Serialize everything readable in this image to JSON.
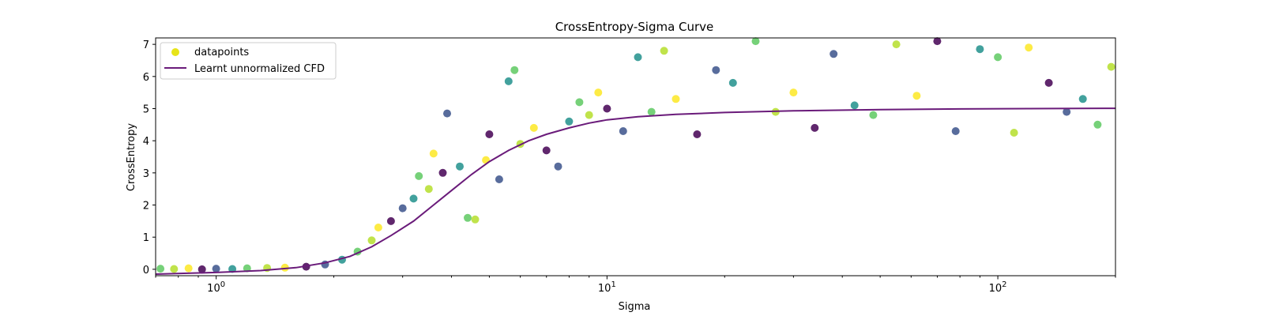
{
  "chart_data": {
    "type": "scatter",
    "title": "CrossEntropy-Sigma Curve",
    "xlabel": "Sigma",
    "ylabel": "CrossEntropy",
    "xscale": "log",
    "xlim": [
      0.7,
      200
    ],
    "ylim": [
      -0.2,
      7.2
    ],
    "xticks": [
      {
        "value": 1,
        "base": "10",
        "exp": "0"
      },
      {
        "value": 10,
        "base": "10",
        "exp": "1"
      },
      {
        "value": 100,
        "base": "10",
        "exp": "2"
      }
    ],
    "yticks": [
      0,
      1,
      2,
      3,
      4,
      5,
      6,
      7
    ],
    "grid": false,
    "legend": {
      "placement": "top-left",
      "entries": [
        {
          "label": "datapoints",
          "kind": "marker",
          "color": "#e7e419"
        },
        {
          "label": "Learnt unnormalized CFD",
          "kind": "line",
          "color": "#6a1b7a"
        }
      ]
    },
    "series": [
      {
        "name": "datapoints",
        "kind": "scatter",
        "colormap": "viridis",
        "points": [
          [
            0.72,
            0.02
          ],
          [
            0.78,
            0.01
          ],
          [
            0.85,
            0.03
          ],
          [
            0.92,
            0.0
          ],
          [
            1.0,
            0.02
          ],
          [
            1.1,
            0.01
          ],
          [
            1.2,
            0.03
          ],
          [
            1.35,
            0.04
          ],
          [
            1.5,
            0.05
          ],
          [
            1.7,
            0.08
          ],
          [
            1.9,
            0.15
          ],
          [
            2.1,
            0.3
          ],
          [
            2.3,
            0.55
          ],
          [
            2.5,
            0.9
          ],
          [
            2.6,
            1.3
          ],
          [
            2.8,
            1.5
          ],
          [
            3.0,
            1.9
          ],
          [
            3.2,
            2.2
          ],
          [
            3.3,
            2.9
          ],
          [
            3.5,
            2.5
          ],
          [
            3.6,
            3.6
          ],
          [
            3.8,
            3.0
          ],
          [
            3.9,
            4.85
          ],
          [
            4.2,
            3.2
          ],
          [
            4.4,
            1.6
          ],
          [
            4.6,
            1.55
          ],
          [
            4.9,
            3.4
          ],
          [
            5.0,
            4.2
          ],
          [
            5.3,
            2.8
          ],
          [
            5.6,
            5.85
          ],
          [
            5.8,
            6.2
          ],
          [
            6.0,
            3.9
          ],
          [
            6.5,
            4.4
          ],
          [
            7.0,
            3.7
          ],
          [
            7.5,
            3.2
          ],
          [
            8.0,
            4.6
          ],
          [
            8.5,
            5.2
          ],
          [
            9.0,
            4.8
          ],
          [
            9.5,
            5.5
          ],
          [
            10.0,
            5.0
          ],
          [
            11.0,
            4.3
          ],
          [
            12.0,
            6.6
          ],
          [
            13.0,
            4.9
          ],
          [
            14.0,
            6.8
          ],
          [
            15.0,
            5.3
          ],
          [
            17.0,
            4.2
          ],
          [
            19.0,
            6.2
          ],
          [
            21.0,
            5.8
          ],
          [
            24.0,
            7.1
          ],
          [
            27.0,
            4.9
          ],
          [
            30.0,
            5.5
          ],
          [
            34.0,
            4.4
          ],
          [
            38.0,
            6.7
          ],
          [
            43.0,
            5.1
          ],
          [
            48.0,
            4.8
          ],
          [
            55.0,
            7.0
          ],
          [
            62.0,
            5.4
          ],
          [
            70.0,
            7.1
          ],
          [
            78.0,
            4.3
          ],
          [
            90.0,
            6.85
          ],
          [
            100.0,
            6.6
          ],
          [
            110.0,
            4.25
          ],
          [
            120.0,
            6.9
          ],
          [
            135.0,
            5.8
          ],
          [
            150.0,
            4.9
          ],
          [
            165.0,
            5.3
          ],
          [
            180.0,
            4.5
          ],
          [
            195.0,
            6.3
          ]
        ]
      },
      {
        "name": "Learnt unnormalized CFD",
        "kind": "line",
        "color": "#6a1b7a",
        "points": [
          [
            0.7,
            -0.15
          ],
          [
            1.0,
            -0.1
          ],
          [
            1.3,
            -0.04
          ],
          [
            1.6,
            0.05
          ],
          [
            1.9,
            0.2
          ],
          [
            2.2,
            0.4
          ],
          [
            2.5,
            0.7
          ],
          [
            2.8,
            1.05
          ],
          [
            3.2,
            1.5
          ],
          [
            3.6,
            2.0
          ],
          [
            4.0,
            2.45
          ],
          [
            4.5,
            2.95
          ],
          [
            5.0,
            3.35
          ],
          [
            5.6,
            3.7
          ],
          [
            6.3,
            4.0
          ],
          [
            7.0,
            4.2
          ],
          [
            8.0,
            4.4
          ],
          [
            9.0,
            4.55
          ],
          [
            10.0,
            4.65
          ],
          [
            12.0,
            4.75
          ],
          [
            15.0,
            4.82
          ],
          [
            20.0,
            4.88
          ],
          [
            30.0,
            4.93
          ],
          [
            50.0,
            4.97
          ],
          [
            80.0,
            4.99
          ],
          [
            120.0,
            5.0
          ],
          [
            200.0,
            5.01
          ]
        ]
      }
    ]
  }
}
